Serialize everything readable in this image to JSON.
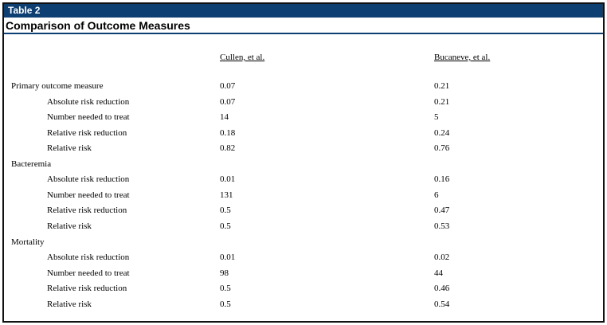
{
  "table_label": "Table 2",
  "title": "Comparison of Outcome Measures",
  "columns": [
    "Cullen, et al.",
    "Bucaneve, et al."
  ],
  "rows": [
    {
      "label": "Primary outcome measure",
      "indent": false,
      "values": [
        "0.07",
        "0.21"
      ]
    },
    {
      "label": "Absolute risk reduction",
      "indent": true,
      "values": [
        "0.07",
        "0.21"
      ]
    },
    {
      "label": "Number needed to treat",
      "indent": true,
      "values": [
        "14",
        "5"
      ]
    },
    {
      "label": "Relative risk reduction",
      "indent": true,
      "values": [
        "0.18",
        "0.24"
      ]
    },
    {
      "label": "Relative risk",
      "indent": true,
      "values": [
        "0.82",
        "0.76"
      ]
    },
    {
      "label": "Bacteremia",
      "indent": false,
      "values": [
        "",
        ""
      ]
    },
    {
      "label": "Absolute risk reduction",
      "indent": true,
      "values": [
        "0.01",
        "0.16"
      ]
    },
    {
      "label": "Number needed to treat",
      "indent": true,
      "values": [
        "131",
        "6"
      ]
    },
    {
      "label": "Relative risk reduction",
      "indent": true,
      "values": [
        "0.5",
        "0.47"
      ]
    },
    {
      "label": "Relative risk",
      "indent": true,
      "values": [
        "0.5",
        "0.53"
      ]
    },
    {
      "label": "Mortality",
      "indent": false,
      "values": [
        "",
        ""
      ]
    },
    {
      "label": "Absolute risk reduction",
      "indent": true,
      "values": [
        "0.01",
        "0.02"
      ]
    },
    {
      "label": "Number needed to treat",
      "indent": true,
      "values": [
        "98",
        "44"
      ]
    },
    {
      "label": "Relative risk reduction",
      "indent": true,
      "values": [
        "0.5",
        "0.46"
      ]
    },
    {
      "label": "Relative risk",
      "indent": true,
      "values": [
        "0.5",
        "0.54"
      ]
    }
  ]
}
